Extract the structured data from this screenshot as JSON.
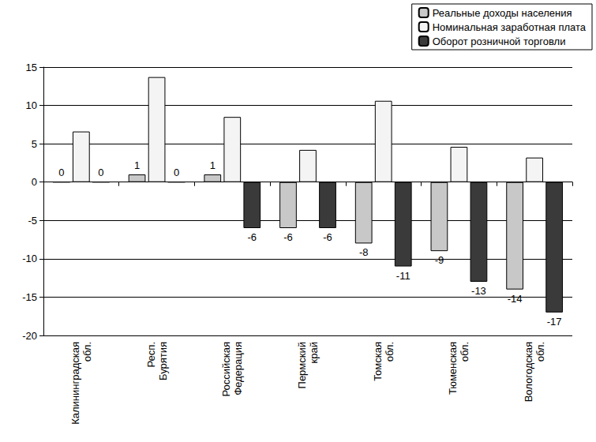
{
  "chart_data": {
    "type": "bar",
    "categories": [
      "Калининградская обл.",
      "Респ. Бурятия",
      "Российская Федерация",
      "Пермский край",
      "Томская обл.",
      "Тюменская обл.",
      "Вологодская обл."
    ],
    "series": [
      {
        "name": "Реальные доходы населения",
        "color": "#c8c8c8",
        "values": [
          0,
          1,
          1,
          -6,
          -8,
          -9,
          -14
        ],
        "data_labels": true
      },
      {
        "name": "Номинальная заработная плата",
        "color": "#f4f4f4",
        "values": [
          6.6,
          13.7,
          8.5,
          4.2,
          10.6,
          4.6,
          3.2
        ],
        "data_labels": false
      },
      {
        "name": "Оборот розничной торговли",
        "color": "#3a3a3a",
        "values": [
          0,
          0,
          -6,
          -6,
          -11,
          -13,
          -17
        ],
        "data_labels": true
      }
    ],
    "ylim": [
      -20,
      15
    ],
    "yticks": [
      -20,
      -15,
      -10,
      -5,
      0,
      5,
      10,
      15
    ],
    "grid": true,
    "legend": "top-right"
  }
}
